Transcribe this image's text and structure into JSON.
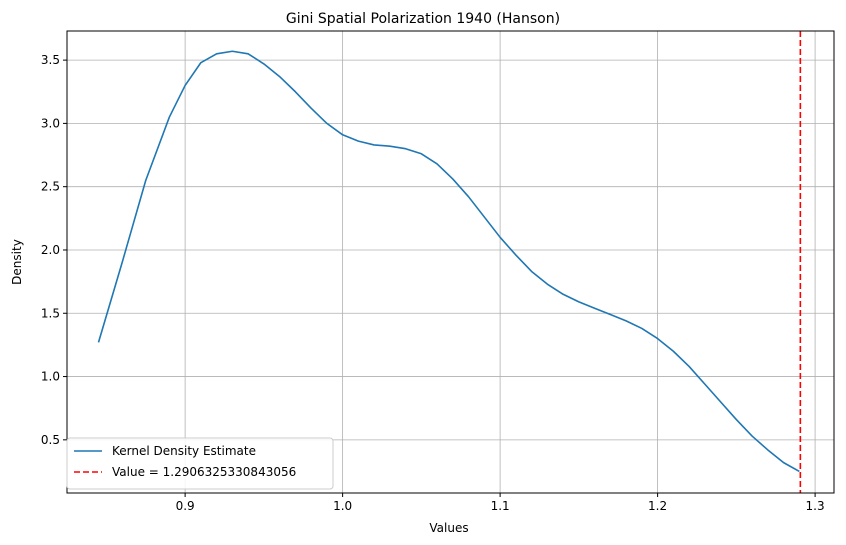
{
  "chart_data": {
    "type": "line",
    "title": "Gini Spatial Polarization 1940 (Hanson)",
    "xlabel": "Values",
    "ylabel": "Density",
    "xlim": [
      0.825,
      1.312
    ],
    "ylim": [
      0.08,
      3.73
    ],
    "xticks": [
      0.9,
      1.0,
      1.1,
      1.2,
      1.3
    ],
    "xtick_labels": [
      "0.9",
      "1.0",
      "1.1",
      "1.2",
      "1.3"
    ],
    "yticks": [
      0.5,
      1.0,
      1.5,
      2.0,
      2.5,
      3.0,
      3.5
    ],
    "ytick_labels": [
      "0.5",
      "1.0",
      "1.5",
      "2.0",
      "2.5",
      "3.0",
      "3.5"
    ],
    "grid": true,
    "legend_position": "lower-left",
    "series": [
      {
        "name": "Kernel Density Estimate",
        "color": "#1f77b4",
        "style": "solid",
        "x": [
          0.845,
          0.86,
          0.875,
          0.89,
          0.9,
          0.91,
          0.92,
          0.93,
          0.94,
          0.95,
          0.96,
          0.97,
          0.98,
          0.99,
          1.0,
          1.01,
          1.02,
          1.03,
          1.04,
          1.05,
          1.06,
          1.07,
          1.08,
          1.09,
          1.1,
          1.11,
          1.12,
          1.13,
          1.14,
          1.15,
          1.16,
          1.17,
          1.18,
          1.19,
          1.2,
          1.21,
          1.22,
          1.23,
          1.24,
          1.25,
          1.26,
          1.27,
          1.28,
          1.29
        ],
        "y": [
          1.27,
          1.9,
          2.55,
          3.05,
          3.3,
          3.48,
          3.55,
          3.57,
          3.55,
          3.47,
          3.37,
          3.25,
          3.12,
          3.0,
          2.91,
          2.86,
          2.83,
          2.82,
          2.8,
          2.76,
          2.68,
          2.56,
          2.42,
          2.26,
          2.1,
          1.96,
          1.83,
          1.73,
          1.65,
          1.59,
          1.54,
          1.49,
          1.44,
          1.38,
          1.3,
          1.2,
          1.08,
          0.94,
          0.8,
          0.66,
          0.53,
          0.42,
          0.32,
          0.25
        ]
      },
      {
        "name": "Value = 1.2906325330843056",
        "color": "#ff0000",
        "style": "dashed",
        "vline_x": 1.2906325330843056
      }
    ]
  }
}
